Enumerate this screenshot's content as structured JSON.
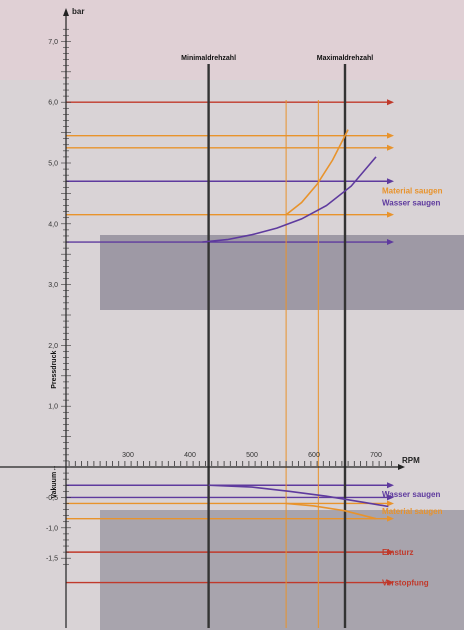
{
  "chart_data": {
    "type": "line",
    "y_unit": "bar",
    "x_unit": "RPM",
    "ylim": [
      -1.6,
      7.4
    ],
    "xlim": [
      195,
      735
    ],
    "y_ticks": [
      "7,0",
      "6,0",
      "5,0",
      "4,0",
      "3,0",
      "2,0",
      "1,0",
      "-0,5",
      "-1,0",
      "-1,5"
    ],
    "x_ticks": [
      "300",
      "400",
      "500",
      "600",
      "700"
    ],
    "y_axis_label_positive": "Pressdruck",
    "y_axis_label_negative": "Vakuum",
    "vertical_markers": [
      {
        "label": "Minimaldrehzahl",
        "x": 430
      },
      {
        "label": "Maximaldrehzahl",
        "x": 650
      }
    ],
    "secondary_verticals_rpm": [
      555,
      607
    ],
    "horizontal_levels": [
      {
        "y": 6.0,
        "color": "#c0392b",
        "label": ""
      },
      {
        "y": 5.45,
        "color": "#e8932c",
        "label": ""
      },
      {
        "y": 5.25,
        "color": "#e8932c",
        "label": ""
      },
      {
        "y": 4.7,
        "color": "#5e3a9e",
        "label": ""
      },
      {
        "y": 4.15,
        "color": "#e8932c",
        "label": ""
      },
      {
        "y": 3.7,
        "color": "#5e3a9e",
        "label": ""
      },
      {
        "y": -0.3,
        "color": "#5e3a9e",
        "label": ""
      },
      {
        "y": -0.5,
        "color": "#5e3a9e",
        "label": ""
      },
      {
        "y": -0.6,
        "color": "#e8932c",
        "label": ""
      },
      {
        "y": -0.85,
        "color": "#e8932c",
        "label": ""
      },
      {
        "y": -1.4,
        "color": "#c0392b",
        "label": ""
      },
      {
        "y": -1.9,
        "color": "#c0392b",
        "label": ""
      }
    ],
    "series": [
      {
        "name": "Wasser saugen",
        "color": "#5e3a9e",
        "x": [
          420,
          460,
          500,
          540,
          580,
          620,
          660,
          700
        ],
        "y": [
          3.7,
          3.74,
          3.82,
          3.93,
          4.08,
          4.3,
          4.62,
          5.1
        ]
      },
      {
        "name": "Material saugen",
        "color": "#e8932c",
        "x": [
          555,
          580,
          605,
          630,
          655
        ],
        "y": [
          4.15,
          4.35,
          4.65,
          5.05,
          5.55
        ]
      },
      {
        "name": "Wasser saugen",
        "color": "#5e3a9e",
        "x": [
          430,
          500,
          560,
          620,
          680,
          720
        ],
        "y": [
          -0.3,
          -0.33,
          -0.4,
          -0.48,
          -0.58,
          -0.65
        ]
      },
      {
        "name": "Material saugen",
        "color": "#e8932c",
        "x": [
          555,
          600,
          650,
          700
        ],
        "y": [
          -0.6,
          -0.64,
          -0.72,
          -0.85
        ]
      }
    ],
    "annotations": [
      {
        "text": "Material saugen",
        "y": 4.55,
        "color": "#e8932c"
      },
      {
        "text": "Wasser saugen",
        "y": 4.35,
        "color": "#5e3a9e"
      },
      {
        "text": "Wasser saugen",
        "y": -0.44,
        "color": "#5e3a9e"
      },
      {
        "text": "Material saugen",
        "y": -0.72,
        "color": "#e8932c"
      },
      {
        "text": "Einsturz",
        "y": -1.4,
        "color": "#c0392b"
      },
      {
        "text": "Verstopfung",
        "y": -1.9,
        "color": "#c0392b"
      }
    ]
  }
}
